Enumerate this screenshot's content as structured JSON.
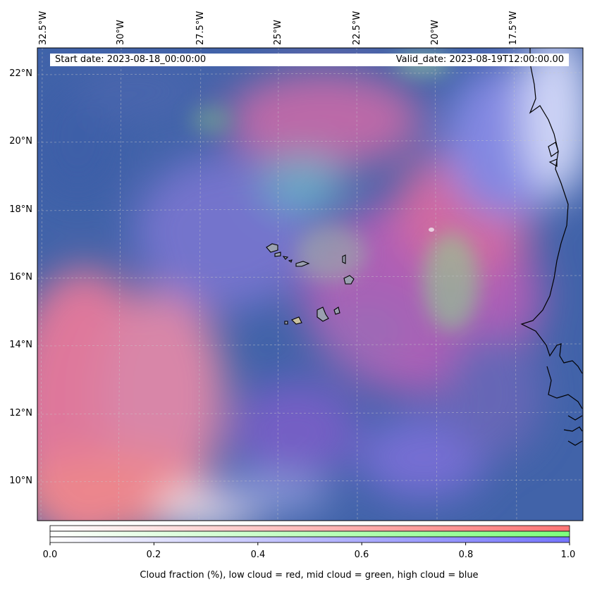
{
  "map": {
    "start_date_label": "Start date: 2023-08-18_00:00:00",
    "valid_date_label": "Valid_date: 2023-08-19T12:00:00.00",
    "longitude_ticks": [
      "32.5°W",
      "30°W",
      "27.5°W",
      "25°W",
      "22.5°W",
      "20°W",
      "17.5°W"
    ],
    "latitude_ticks": [
      "22°N",
      "20°N",
      "18°N",
      "16°N",
      "14°N",
      "12°N",
      "10°N"
    ],
    "gridlines": true,
    "coastline_color": "#000000",
    "layers": {
      "low_cloud_color": "#ff7f7f",
      "mid_cloud_color": "#7fff7f",
      "high_cloud_color": "#7f7fff",
      "background_color": "#3f62a8"
    }
  },
  "colorbar": {
    "ticks": [
      "0.0",
      "0.2",
      "0.4",
      "0.6",
      "0.8",
      "1.0"
    ],
    "caption": "Cloud fraction (%), low cloud = red, mid cloud = green, high cloud = blue",
    "range": [
      0.0,
      1.0
    ]
  }
}
